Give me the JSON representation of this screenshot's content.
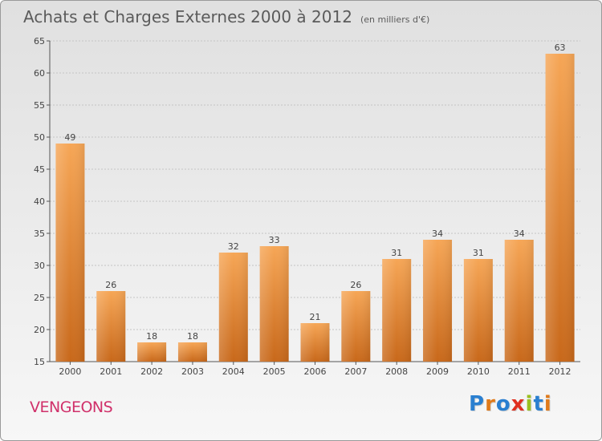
{
  "title": "Achats et Charges Externes 2000 à 2012",
  "unit": "(en milliers d'€)",
  "commune": "VENGEONS",
  "logo": {
    "text": "Proxiti",
    "colors": [
      "#2a7fd0",
      "#e07a1a",
      "#2a7fd0",
      "#e03020",
      "#9ac020",
      "#2a7fd0",
      "#e07a1a"
    ]
  },
  "colors": {
    "bar_top": "#f6a656",
    "bar_bottom": "#c8681a",
    "commune": "#d0306a"
  },
  "chart_data": {
    "type": "bar",
    "title": "Achats et Charges Externes 2000 à 2012",
    "categories": [
      "2000",
      "2001",
      "2002",
      "2003",
      "2004",
      "2005",
      "2006",
      "2007",
      "2008",
      "2009",
      "2010",
      "2011",
      "2012"
    ],
    "values": [
      49,
      26,
      18,
      18,
      32,
      33,
      21,
      26,
      31,
      34,
      31,
      34,
      63
    ],
    "ylim": [
      15,
      65
    ],
    "yticks": [
      15,
      20,
      25,
      30,
      35,
      40,
      45,
      50,
      55,
      60,
      65
    ],
    "grid": true,
    "xlabel": "",
    "ylabel": ""
  }
}
